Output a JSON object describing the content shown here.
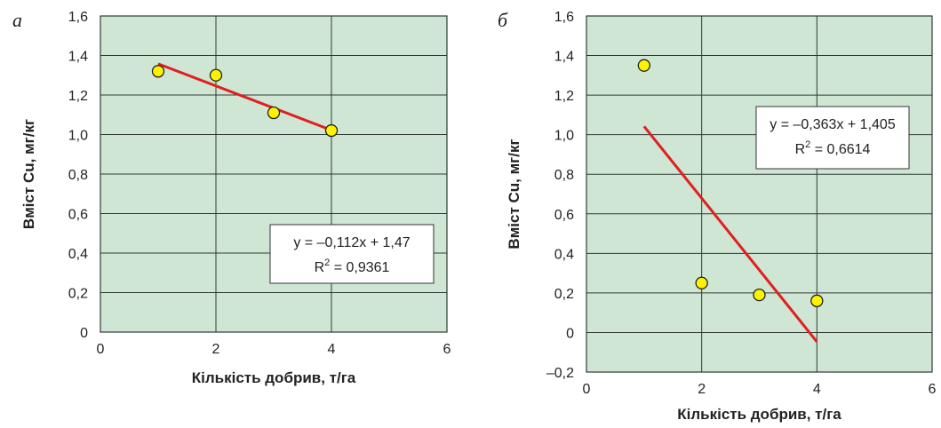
{
  "chart_data": [
    {
      "type": "scatter",
      "panel_label": "а",
      "title": "",
      "xlabel": "Кількість добрив, т/га",
      "ylabel": "Вміст Cu, мг/кг",
      "xlim": [
        0,
        6
      ],
      "ylim": [
        0,
        1.6
      ],
      "x_ticks": [
        "0",
        "2",
        "4",
        "6"
      ],
      "y_ticks": [
        "0",
        "0,2",
        "0,4",
        "0,6",
        "0,8",
        "1,0",
        "1,2",
        "1,4",
        "1,6"
      ],
      "grid": true,
      "background_color": "#cfe6d4",
      "series": [
        {
          "x": [
            1,
            2,
            3,
            4
          ],
          "y": [
            1.32,
            1.3,
            1.11,
            1.02
          ],
          "color": "#fff200"
        }
      ],
      "trendline": {
        "slope": -0.112,
        "intercept": 1.47,
        "x_range": [
          1,
          4
        ],
        "color": "#e02020"
      },
      "equation": "y = –0,112x + 1,47",
      "r2_label": "R",
      "r2_value": "= 0,9361"
    },
    {
      "type": "scatter",
      "panel_label": "б",
      "title": "",
      "xlabel": "Кількість добрив, т/га",
      "ylabel": "Вміст Cu, мг/кг",
      "xlim": [
        0,
        6
      ],
      "ylim": [
        -0.2,
        1.6
      ],
      "x_ticks": [
        "0",
        "2",
        "4",
        "6"
      ],
      "y_ticks": [
        "–0,2",
        "0",
        "0,2",
        "0,4",
        "0,6",
        "0,8",
        "1,0",
        "1,2",
        "1,4",
        "1,6"
      ],
      "grid": true,
      "background_color": "#cfe6d4",
      "series": [
        {
          "x": [
            1,
            2,
            3,
            4
          ],
          "y": [
            1.35,
            0.25,
            0.19,
            0.16
          ],
          "color": "#fff200"
        }
      ],
      "trendline": {
        "slope": -0.363,
        "intercept": 1.405,
        "x_range": [
          1,
          4
        ],
        "color": "#e02020"
      },
      "equation": "y = –0,363x + 1,405",
      "r2_label": "R",
      "r2_value": "= 0,6614"
    }
  ]
}
